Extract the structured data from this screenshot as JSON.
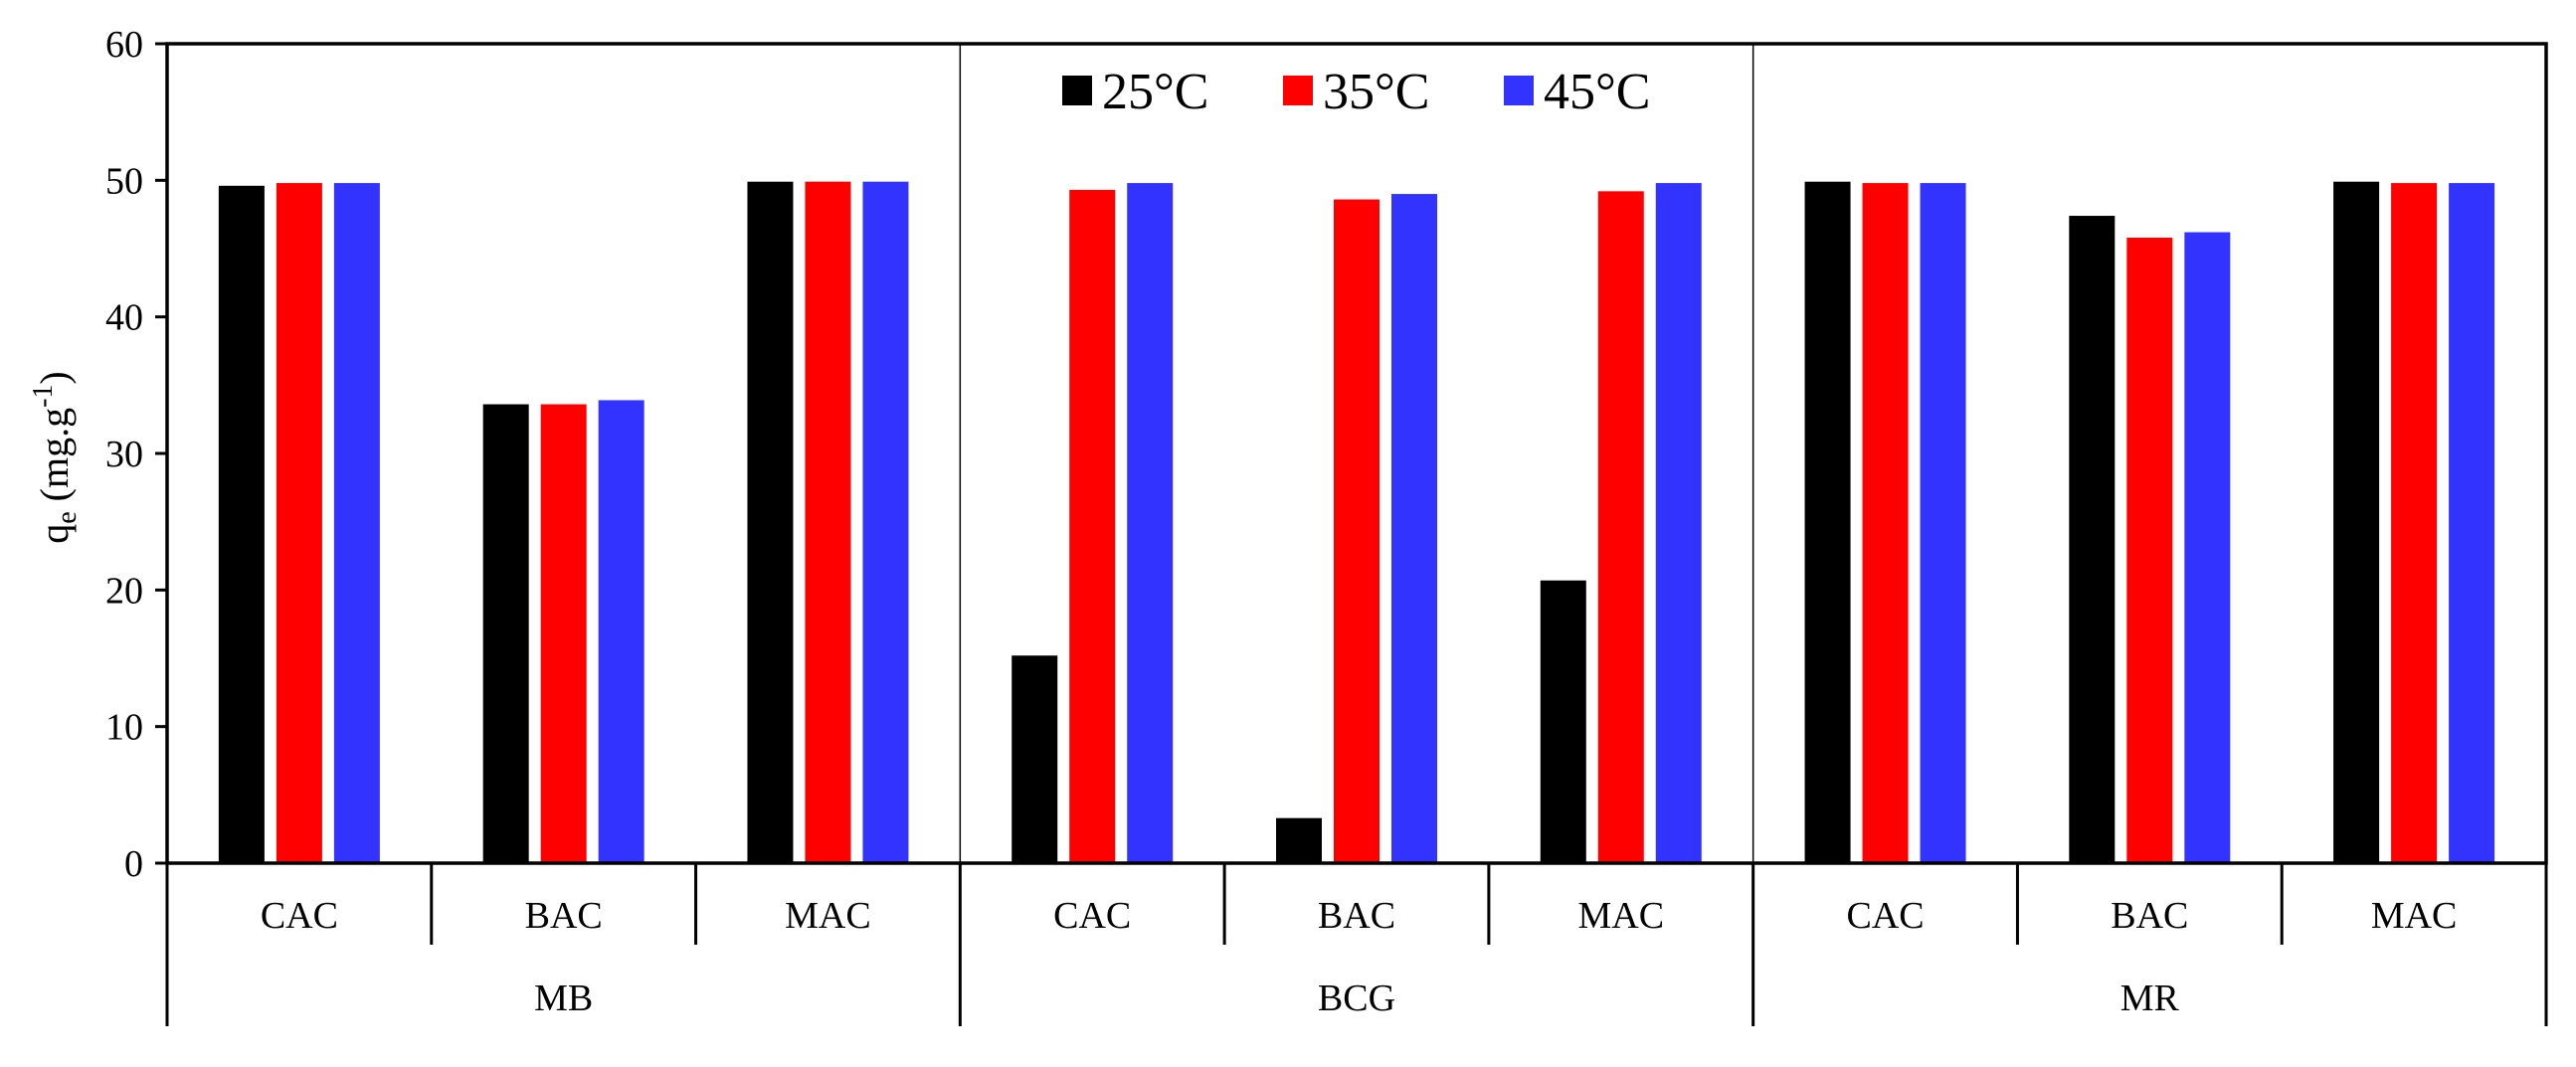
{
  "chart_data": {
    "type": "bar",
    "title": "",
    "xlabel": "",
    "ylabel": "q",
    "ylabel_sub": "e",
    "ylabel_unit_prefix": " (mg.g",
    "ylabel_unit_sup": "-1",
    "ylabel_unit_suffix": ")",
    "ylim": [
      0,
      60
    ],
    "yticks": [
      "0",
      "10",
      "20",
      "30",
      "40",
      "50",
      "60"
    ],
    "groups": [
      "MB",
      "BCG",
      "MR"
    ],
    "subcategories": [
      "CAC",
      "BAC",
      "MAC"
    ],
    "categories": [
      "CAC",
      "BAC",
      "MAC",
      "CAC",
      "BAC",
      "MAC",
      "CAC",
      "BAC",
      "MAC"
    ],
    "legend_position": "top-center",
    "grid": false,
    "series": [
      {
        "name": "25°C",
        "color": "#000000",
        "values": [
          49.6,
          33.6,
          49.9,
          15.2,
          3.3,
          20.7,
          49.9,
          47.4,
          49.9
        ]
      },
      {
        "name": "35°C",
        "color": "#ff0000",
        "values": [
          49.8,
          33.6,
          49.9,
          49.3,
          48.6,
          49.2,
          49.8,
          45.8,
          49.8
        ]
      },
      {
        "name": "45°C",
        "color": "#3333ff",
        "values": [
          49.8,
          33.9,
          49.9,
          49.8,
          49.0,
          49.8,
          49.8,
          46.2,
          49.8
        ]
      }
    ]
  }
}
